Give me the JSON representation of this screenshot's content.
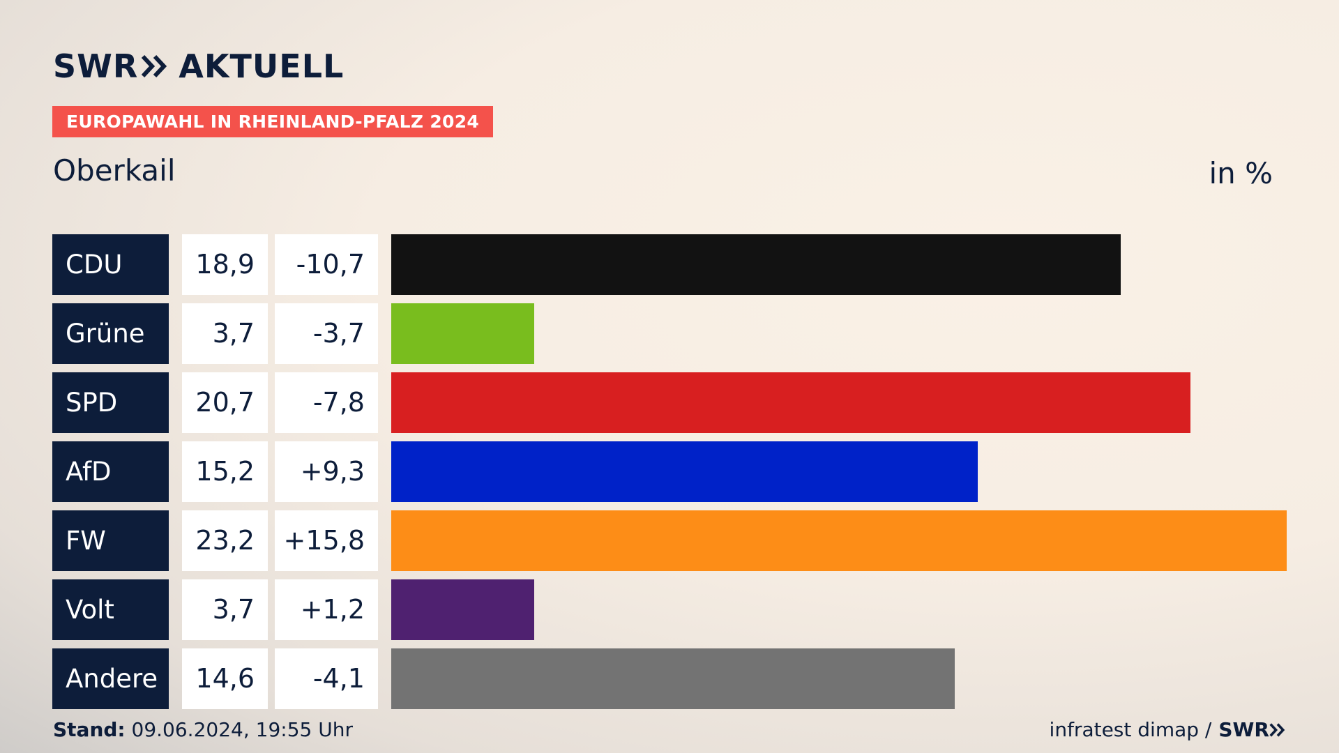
{
  "header": {
    "logo_left": "SWR",
    "logo_right": "AKTUELL",
    "badge": "EUROPAWAHL IN RHEINLAND-PFALZ 2024",
    "place": "Oberkail",
    "unit": "in %"
  },
  "footer": {
    "stand_label": "Stand:",
    "stand_value": " 09.06.2024, 19:55 Uhr",
    "source": "infratest dimap /",
    "source_logo": "SWR"
  },
  "colors": {
    "navy": "#0d1d3a",
    "badge": "#f4524b"
  },
  "chart_data": {
    "type": "bar",
    "orientation": "horizontal",
    "title": "Oberkail",
    "unit": "in %",
    "categories": [
      "CDU",
      "Grüne",
      "SPD",
      "AfD",
      "FW",
      "Volt",
      "Andere"
    ],
    "values": [
      18.9,
      3.7,
      20.7,
      15.2,
      23.2,
      3.7,
      14.6
    ],
    "value_labels": [
      "18,9",
      "3,7",
      "20,7",
      "15,2",
      "23,2",
      "3,7",
      "14,6"
    ],
    "diff_labels": [
      "-10,7",
      "-3,7",
      "-7,8",
      "+9,3",
      "+15,8",
      "+1,2",
      "-4,1"
    ],
    "diffs": [
      -10.7,
      -3.7,
      -7.8,
      9.3,
      15.8,
      1.2,
      -4.1
    ],
    "bar_colors": [
      "#121212",
      "#79bd1e",
      "#d81f20",
      "#0022c8",
      "#fd8d17",
      "#4f2170",
      "#737373"
    ],
    "xlim": [
      0,
      23.2
    ],
    "grid": false,
    "legend": "none"
  }
}
